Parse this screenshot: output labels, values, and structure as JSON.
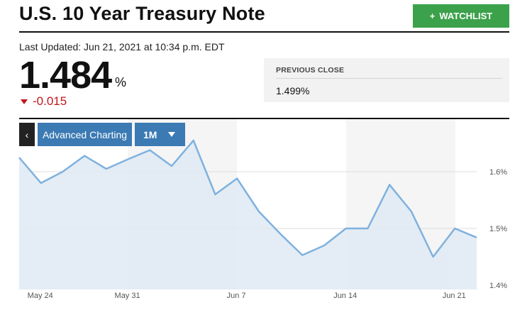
{
  "header": {
    "title": "U.S. 10 Year Treasury Note",
    "watchlist_plus": "+",
    "watchlist_label": "WATCHLIST"
  },
  "quote": {
    "last_updated": "Last Updated: Jun 21, 2021 at 10:34 p.m. EDT",
    "value": "1.484",
    "unit": "%",
    "change": "-0.015",
    "change_color": "#c4151c"
  },
  "previous_close": {
    "label": "PREVIOUS CLOSE",
    "value": "1.499%"
  },
  "chart_controls": {
    "back_icon": "chevron-left-icon",
    "back_glyph": "‹",
    "advanced_label": "Advanced Charting",
    "range_label": "1M",
    "range_icon": "caret-down-icon"
  },
  "colors": {
    "accent_green": "#3ba14a",
    "button_blue": "#3b7ab3",
    "line": "#7fb1de",
    "area": "#dfeaf3"
  },
  "chart_data": {
    "type": "area",
    "x": [
      "May 21",
      "May 24",
      "May 25",
      "May 26",
      "May 27",
      "May 28",
      "Jun 1",
      "Jun 2",
      "Jun 3",
      "Jun 4",
      "Jun 7",
      "Jun 8",
      "Jun 9",
      "Jun 10",
      "Jun 11",
      "Jun 14",
      "Jun 15",
      "Jun 16",
      "Jun 17",
      "Jun 18",
      "Jun 21",
      "Jun 21 (current)"
    ],
    "series": [
      {
        "values": [
          1.625,
          1.58,
          1.6,
          1.628,
          1.605,
          1.622,
          1.638,
          1.61,
          1.655,
          1.56,
          1.588,
          1.53,
          1.49,
          1.453,
          1.47,
          1.5,
          1.5,
          1.577,
          1.53,
          1.45,
          1.5,
          1.484
        ]
      }
    ],
    "x_tick_labels": [
      "May 24",
      "May 31",
      "Jun 7",
      "Jun 14",
      "Jun 21"
    ],
    "y_tick_labels": [
      "1.6%",
      "1.5%",
      "1.4%"
    ],
    "y_ticks": [
      1.6,
      1.5,
      1.4
    ],
    "ylim": [
      1.4,
      1.7
    ],
    "grid": true
  }
}
